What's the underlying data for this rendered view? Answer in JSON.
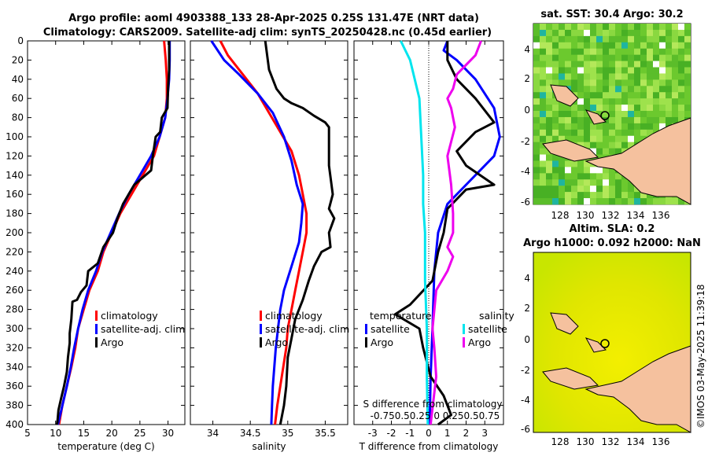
{
  "header": {
    "title_line1": "Argo profile: aoml  4903388_133 28-Apr-2025 0.25S 131.47E (NRT data)",
    "title_line2": "Climatology: CARS2009. Satellite-adj clim: synTS_20250428.nc (0.45d earlier)"
  },
  "colors": {
    "climatology": "#ff0000",
    "satellite": "#0000ff",
    "argo": "#000000",
    "sst_satellite": "#00e5ee",
    "sal_satellite": "#ee00ee"
  },
  "legend": {
    "climatology": "climatology",
    "satellite": "satellite-adj. clim",
    "argo": "Argo",
    "diff_temperature": "temperature",
    "diff_salinity": "salinity",
    "diff_satellite": "satellite",
    "diff_argo": "Argo"
  },
  "maps": {
    "sst_title": "sat. SST: 30.4 Argo: 30.2",
    "sla_title_line1": "Altim. SLA: 0.2",
    "sla_title_line2": "Argo h1000: 0.092 h2000: NaN",
    "watermark": "©IMOS 03-May-2025 11:39:18",
    "lon_ticks": [
      "128",
      "130",
      "132",
      "134",
      "136"
    ],
    "lat_ticks": [
      "4",
      "2",
      "0",
      "-2",
      "-4",
      "-6"
    ]
  },
  "chart_data": [
    {
      "type": "line",
      "name": "temperature_profile",
      "xlabel": "temperature (deg C)",
      "ylabel": "",
      "xlim": [
        5,
        33
      ],
      "ylim": [
        400,
        0
      ],
      "xticks": [
        "5",
        "10",
        "15",
        "20",
        "25",
        "30"
      ],
      "yticks": [
        "0",
        "20",
        "40",
        "60",
        "80",
        "100",
        "120",
        "140",
        "160",
        "180",
        "200",
        "220",
        "240",
        "260",
        "280",
        "300",
        "320",
        "340",
        "360",
        "380",
        "400"
      ],
      "series": [
        {
          "name": "climatology",
          "color": "#ff0000",
          "points": [
            [
              29.3,
              0
            ],
            [
              29.6,
              20
            ],
            [
              29.8,
              40
            ],
            [
              29.8,
              60
            ],
            [
              29.5,
              80
            ],
            [
              28.5,
              100
            ],
            [
              27.5,
              120
            ],
            [
              25.5,
              140
            ],
            [
              23.5,
              160
            ],
            [
              21.5,
              180
            ],
            [
              20,
              200
            ],
            [
              18.5,
              220
            ],
            [
              17.5,
              240
            ],
            [
              16,
              260
            ],
            [
              15,
              280
            ],
            [
              14,
              300
            ],
            [
              13.5,
              320
            ],
            [
              12.8,
              340
            ],
            [
              12,
              360
            ],
            [
              11.2,
              380
            ],
            [
              10.6,
              400
            ]
          ]
        },
        {
          "name": "satellite-adj. clim",
          "color": "#0000ff",
          "points": [
            [
              30.3,
              0
            ],
            [
              30.3,
              20
            ],
            [
              30.2,
              40
            ],
            [
              29.9,
              60
            ],
            [
              29.5,
              80
            ],
            [
              28.5,
              100
            ],
            [
              27,
              120
            ],
            [
              25,
              140
            ],
            [
              23,
              160
            ],
            [
              21.3,
              180
            ],
            [
              19.8,
              200
            ],
            [
              18.3,
              220
            ],
            [
              17.2,
              240
            ],
            [
              15.8,
              260
            ],
            [
              14.8,
              280
            ],
            [
              14,
              300
            ],
            [
              13.3,
              320
            ],
            [
              12.7,
              340
            ],
            [
              12,
              360
            ],
            [
              11.2,
              380
            ],
            [
              10.4,
              400
            ]
          ]
        },
        {
          "name": "Argo",
          "color": "#000000",
          "points": [
            [
              30.2,
              0
            ],
            [
              30.2,
              30
            ],
            [
              30,
              50
            ],
            [
              29.9,
              70
            ],
            [
              28.9,
              80
            ],
            [
              28.6,
              95
            ],
            [
              27.8,
              100
            ],
            [
              27.3,
              120
            ],
            [
              27,
              135
            ],
            [
              24,
              150
            ],
            [
              22,
              170
            ],
            [
              21,
              185
            ],
            [
              20.2,
              200
            ],
            [
              18.5,
              215
            ],
            [
              17.5,
              232
            ],
            [
              15.8,
              240
            ],
            [
              15.5,
              255
            ],
            [
              14.5,
              262
            ],
            [
              13.8,
              270
            ],
            [
              13,
              272
            ],
            [
              12.8,
              290
            ],
            [
              12.5,
              305
            ],
            [
              12.5,
              315
            ],
            [
              12.2,
              330
            ],
            [
              12,
              345
            ],
            [
              11.5,
              360
            ],
            [
              11,
              372
            ],
            [
              10.5,
              385
            ],
            [
              10.3,
              398
            ],
            [
              10.2,
              400
            ]
          ]
        }
      ]
    },
    {
      "type": "line",
      "name": "salinity_profile",
      "xlabel": "salinity",
      "ylabel": "",
      "xlim": [
        33.7,
        35.8
      ],
      "ylim": [
        400,
        0
      ],
      "xticks": [
        "34",
        "34.5",
        "35",
        "35.5"
      ],
      "series": [
        {
          "name": "climatology",
          "color": "#ff0000",
          "points": [
            [
              34.1,
              0
            ],
            [
              34.2,
              15
            ],
            [
              34.4,
              35
            ],
            [
              34.6,
              55
            ],
            [
              34.75,
              75
            ],
            [
              34.9,
              95
            ],
            [
              35.05,
              115
            ],
            [
              35.15,
              140
            ],
            [
              35.2,
              160
            ],
            [
              35.25,
              180
            ],
            [
              35.25,
              200
            ],
            [
              35.2,
              220
            ],
            [
              35.15,
              240
            ],
            [
              35.1,
              260
            ],
            [
              35.05,
              280
            ],
            [
              35.0,
              300
            ],
            [
              34.98,
              320
            ],
            [
              34.94,
              340
            ],
            [
              34.9,
              360
            ],
            [
              34.86,
              380
            ],
            [
              34.83,
              400
            ]
          ]
        },
        {
          "name": "satellite-adj. clim",
          "color": "#0000ff",
          "points": [
            [
              33.98,
              0
            ],
            [
              34.15,
              20
            ],
            [
              34.35,
              35
            ],
            [
              34.6,
              55
            ],
            [
              34.8,
              75
            ],
            [
              34.95,
              100
            ],
            [
              35.05,
              125
            ],
            [
              35.12,
              150
            ],
            [
              35.2,
              170
            ],
            [
              35.18,
              190
            ],
            [
              35.15,
              210
            ],
            [
              35.05,
              235
            ],
            [
              34.95,
              260
            ],
            [
              34.9,
              280
            ],
            [
              34.87,
              300
            ],
            [
              34.84,
              320
            ],
            [
              34.82,
              340
            ],
            [
              34.8,
              360
            ],
            [
              34.79,
              380
            ],
            [
              34.78,
              400
            ]
          ]
        },
        {
          "name": "Argo",
          "color": "#000000",
          "points": [
            [
              34.7,
              0
            ],
            [
              34.75,
              30
            ],
            [
              34.85,
              50
            ],
            [
              34.95,
              60
            ],
            [
              35.05,
              65
            ],
            [
              35.2,
              70
            ],
            [
              35.35,
              78
            ],
            [
              35.5,
              85
            ],
            [
              35.55,
              90
            ],
            [
              35.55,
              130
            ],
            [
              35.6,
              160
            ],
            [
              35.55,
              175
            ],
            [
              35.62,
              185
            ],
            [
              35.55,
              200
            ],
            [
              35.57,
              215
            ],
            [
              35.45,
              220
            ],
            [
              35.35,
              235
            ],
            [
              35.28,
              250
            ],
            [
              35.2,
              270
            ],
            [
              35.1,
              290
            ],
            [
              35.05,
              310
            ],
            [
              35.0,
              330
            ],
            [
              34.98,
              360
            ],
            [
              34.95,
              380
            ],
            [
              34.9,
              400
            ]
          ]
        }
      ]
    },
    {
      "type": "line",
      "name": "difference_profile",
      "xlabel": "T difference from climatology",
      "ylabel": "",
      "xlim": [
        -4,
        4
      ],
      "ylim": [
        400,
        0
      ],
      "xticks": [
        "-3",
        "-2",
        "-1",
        "0",
        "1",
        "2",
        "3"
      ],
      "secondary_xlabel": "S difference from climatology",
      "secondary_xticks": "-0.750.50.25 0 0.250.50.75",
      "series": [
        {
          "name": "temperature satellite",
          "color": "#0000ff",
          "points": [
            [
              1,
              0
            ],
            [
              0.8,
              10
            ],
            [
              1.5,
              20
            ],
            [
              2.5,
              40
            ],
            [
              3.5,
              70
            ],
            [
              3.8,
              100
            ],
            [
              3.5,
              120
            ],
            [
              2,
              150
            ],
            [
              1,
              170
            ],
            [
              0.5,
              200
            ],
            [
              0.3,
              240
            ],
            [
              0.2,
              300
            ],
            [
              0.1,
              350
            ],
            [
              0.05,
              400
            ]
          ]
        },
        {
          "name": "temperature Argo",
          "color": "#000000",
          "points": [
            [
              1,
              0
            ],
            [
              1,
              20
            ],
            [
              1.5,
              40
            ],
            [
              2.5,
              60
            ],
            [
              3.5,
              85
            ],
            [
              2.5,
              95
            ],
            [
              1.5,
              115
            ],
            [
              2,
              130
            ],
            [
              3.5,
              150
            ],
            [
              2,
              155
            ],
            [
              1,
              175
            ],
            [
              0.8,
              200
            ],
            [
              0.5,
              220
            ],
            [
              0.2,
              250
            ],
            [
              -1,
              275
            ],
            [
              -1.8,
              285
            ],
            [
              -0.5,
              300
            ],
            [
              -0.3,
              320
            ],
            [
              0.1,
              350
            ],
            [
              0.8,
              370
            ],
            [
              1.2,
              390
            ],
            [
              0.5,
              400
            ]
          ]
        },
        {
          "name": "salinity satellite",
          "color": "#00e5ee",
          "points": [
            [
              -1.5,
              0
            ],
            [
              -1.0,
              20
            ],
            [
              -0.5,
              60
            ],
            [
              -0.4,
              100
            ],
            [
              -0.3,
              140
            ],
            [
              -0.3,
              170
            ],
            [
              -0.2,
              200
            ],
            [
              -0.2,
              250
            ],
            [
              -0.1,
              300
            ],
            [
              -0.1,
              350
            ],
            [
              -0.05,
              400
            ]
          ]
        },
        {
          "name": "salinity Argo",
          "color": "#ee00ee",
          "points": [
            [
              2.8,
              0
            ],
            [
              2.5,
              15
            ],
            [
              1.5,
              35
            ],
            [
              1.3,
              50
            ],
            [
              1.0,
              60
            ],
            [
              1.2,
              70
            ],
            [
              1.4,
              90
            ],
            [
              1.0,
              120
            ],
            [
              1.2,
              150
            ],
            [
              1.3,
              180
            ],
            [
              1.3,
              200
            ],
            [
              1.0,
              215
            ],
            [
              1.3,
              225
            ],
            [
              1.0,
              240
            ],
            [
              0.4,
              260
            ],
            [
              0.2,
              300
            ],
            [
              0.3,
              320
            ],
            [
              0.4,
              350
            ],
            [
              0.1,
              400
            ]
          ]
        }
      ]
    }
  ]
}
